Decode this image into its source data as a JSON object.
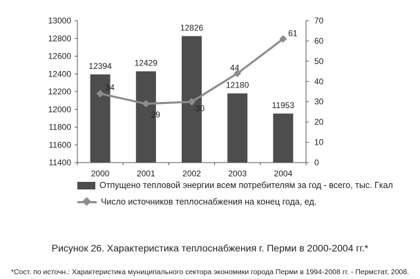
{
  "chart_data": {
    "type": "bar",
    "categories": [
      "2000",
      "2001",
      "2002",
      "2003",
      "2004"
    ],
    "series": [
      {
        "name": "Отпущено тепловой энергии всем потребителям за год - всего, тыс. Гкал",
        "type": "bar",
        "axis": "left",
        "values": [
          12394,
          12429,
          12826,
          12180,
          11953
        ],
        "labels": [
          "12394",
          "12429",
          "12826",
          "12180",
          "11953"
        ],
        "color": "#4d4d4d"
      },
      {
        "name": "Число источников теплоснабжения на конец года, ед.",
        "type": "line",
        "axis": "right",
        "values": [
          34,
          29,
          30,
          44,
          61
        ],
        "labels": [
          "34",
          "29",
          "30",
          "44",
          "61"
        ],
        "color": "#8c8c8c"
      }
    ],
    "y_left": {
      "min": 11400,
      "max": 13000,
      "ticks": [
        "11400",
        "11600",
        "11800",
        "12000",
        "12200",
        "12400",
        "12600",
        "12800",
        "13000"
      ]
    },
    "y_right": {
      "min": 0,
      "max": 70,
      "ticks": [
        "0",
        "10",
        "20",
        "30",
        "40",
        "50",
        "60",
        "70"
      ]
    },
    "grid": false,
    "legend_position": "bottom"
  },
  "caption": "Рисунок 26. Характеристика теплоснабжения г. Перми в 2000-2004 гг.*",
  "source_note": "*Сост. по источн.: Характеристика муниципального сектора экономики города Перми в 1994-2008 гг. - Пермстат, 2008."
}
